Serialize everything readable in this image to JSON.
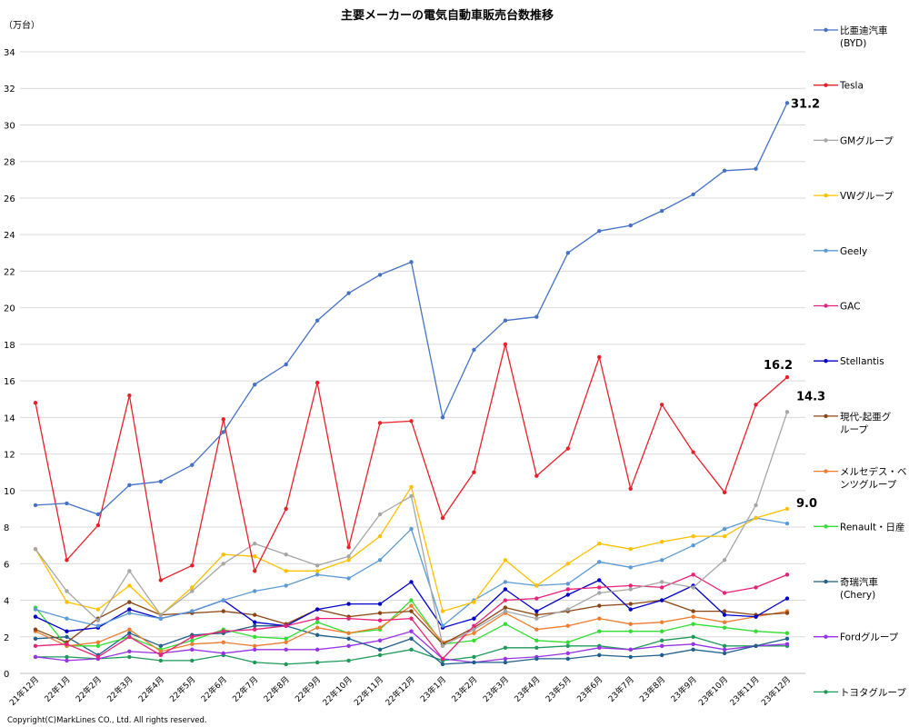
{
  "chart_data": {
    "type": "line",
    "title": "主要メーカーの電気自動車販売台数推移",
    "unit_label": "（万台）",
    "copyright": "Copyright(C)MarkLines CO., Ltd. All rights reserved.",
    "ylim": [
      0,
      34
    ],
    "yticks": [
      0,
      2,
      4,
      6,
      8,
      10,
      12,
      14,
      16,
      18,
      20,
      22,
      24,
      26,
      28,
      30,
      32,
      34
    ],
    "grid": true,
    "legend_position": "right",
    "categories": [
      "21年12月",
      "22年1月",
      "22年2月",
      "22年3月",
      "22年4月",
      "22年5月",
      "22年6月",
      "22年7月",
      "22年8月",
      "22年9月",
      "22年10月",
      "22年11月",
      "22年12月",
      "23年1月",
      "23年2月",
      "23年3月",
      "23年4月",
      "23年5月",
      "23年6月",
      "23年7月",
      "23年8月",
      "23年9月",
      "23年10月",
      "23年11月",
      "23年12月"
    ],
    "series": [
      {
        "name": "比亜迪汽車 (BYD)",
        "legend_lines": [
          "比亜迪汽車",
          "(BYD)"
        ],
        "color": "#4472c4",
        "values": [
          9.2,
          9.3,
          8.7,
          10.3,
          10.5,
          11.4,
          13.2,
          15.8,
          16.9,
          19.3,
          20.8,
          21.8,
          22.5,
          14.0,
          17.7,
          19.3,
          19.5,
          23.0,
          24.2,
          24.5,
          25.3,
          26.2,
          27.5,
          27.6,
          31.2
        ]
      },
      {
        "name": "Tesla",
        "legend_lines": [
          "Tesla"
        ],
        "color": "#e8202a",
        "values": [
          14.8,
          6.2,
          8.1,
          15.2,
          5.1,
          5.9,
          13.9,
          5.6,
          9.0,
          15.9,
          6.9,
          13.7,
          13.8,
          8.5,
          11.0,
          18.0,
          10.8,
          12.3,
          17.3,
          10.1,
          14.7,
          12.1,
          9.9,
          14.7,
          16.2
        ]
      },
      {
        "name": "GMグループ",
        "legend_lines": [
          "GMグループ"
        ],
        "color": "#a6a6a6",
        "values": [
          6.8,
          4.5,
          2.9,
          5.6,
          3.2,
          4.5,
          6.0,
          7.1,
          6.5,
          5.9,
          6.4,
          8.7,
          9.7,
          1.5,
          2.4,
          3.4,
          3.0,
          3.5,
          4.4,
          4.6,
          5.0,
          4.7,
          6.2,
          9.2,
          14.3
        ]
      },
      {
        "name": "VWグループ",
        "legend_lines": [
          "VWグループ"
        ],
        "color": "#ffc000",
        "values": [
          6.8,
          3.9,
          3.5,
          4.8,
          3.2,
          4.7,
          6.5,
          6.4,
          5.6,
          5.6,
          6.2,
          7.5,
          10.2,
          3.4,
          3.9,
          6.2,
          4.8,
          6.0,
          7.1,
          6.8,
          7.2,
          7.5,
          7.5,
          8.5,
          9.0
        ]
      },
      {
        "name": "Geely",
        "legend_lines": [
          "Geely"
        ],
        "color": "#5b9bd5",
        "values": [
          3.5,
          3.0,
          2.6,
          3.3,
          3.0,
          3.4,
          4.0,
          4.5,
          4.8,
          5.4,
          5.2,
          6.2,
          7.9,
          2.6,
          4.0,
          5.0,
          4.8,
          4.9,
          6.1,
          5.8,
          6.2,
          7.0,
          7.9,
          8.5,
          8.2
        ]
      },
      {
        "name": "GAC",
        "legend_lines": [
          "GAC"
        ],
        "color": "#e8217a",
        "values": [
          1.5,
          1.6,
          0.9,
          2.0,
          1.0,
          2.0,
          2.3,
          2.4,
          2.6,
          3.0,
          3.0,
          2.9,
          3.0,
          0.8,
          2.6,
          4.0,
          4.1,
          4.6,
          4.7,
          4.8,
          4.7,
          5.4,
          4.4,
          4.7,
          5.4
        ]
      },
      {
        "name": "Stellantis",
        "legend_lines": [
          "Stellantis"
        ],
        "color": "#0000c8",
        "values": [
          3.1,
          2.3,
          2.5,
          3.5,
          3.0,
          3.4,
          4.0,
          2.8,
          2.6,
          3.5,
          3.8,
          3.8,
          5.0,
          2.5,
          3.0,
          4.6,
          3.4,
          4.3,
          5.1,
          3.5,
          4.0,
          4.8,
          3.2,
          3.1,
          4.1
        ]
      },
      {
        "name": "現代-起亜グループ",
        "legend_lines": [
          "現代-起亜グ",
          "ループ"
        ],
        "color": "#8b4513",
        "values": [
          2.4,
          1.7,
          3.0,
          3.9,
          3.2,
          3.3,
          3.4,
          3.2,
          2.7,
          3.5,
          3.1,
          3.3,
          3.4,
          1.6,
          2.5,
          3.6,
          3.2,
          3.4,
          3.7,
          3.8,
          4.0,
          3.4,
          3.4,
          3.2,
          3.3
        ]
      },
      {
        "name": "メルセデス・ベンツグループ",
        "legend_lines": [
          "メルセデス・ベ",
          "ンツグループ"
        ],
        "color": "#ed7d31",
        "values": [
          2.3,
          1.5,
          1.7,
          2.4,
          1.2,
          1.6,
          1.7,
          1.5,
          1.7,
          2.5,
          2.2,
          2.5,
          3.7,
          1.7,
          2.2,
          3.3,
          2.4,
          2.6,
          3.0,
          2.7,
          2.8,
          3.1,
          2.8,
          3.1,
          3.4
        ]
      },
      {
        "name": "Renault・日産",
        "legend_lines": [
          "Renault・日産"
        ],
        "color": "#33dd33",
        "values": [
          3.6,
          1.5,
          1.5,
          2.0,
          1.3,
          1.8,
          2.4,
          2.0,
          1.9,
          2.8,
          2.2,
          2.4,
          4.0,
          1.6,
          1.8,
          2.7,
          1.8,
          1.7,
          2.3,
          2.3,
          2.3,
          2.7,
          2.5,
          2.3,
          2.2
        ]
      },
      {
        "name": "奇瑞汽車 (Chery)",
        "legend_lines": [
          "奇瑞汽車",
          "(Chery)"
        ],
        "color": "#1f5f8b",
        "values": [
          1.9,
          2.0,
          1.0,
          2.2,
          1.5,
          2.1,
          2.2,
          2.6,
          2.6,
          2.1,
          1.9,
          1.3,
          1.9,
          0.5,
          0.6,
          0.6,
          0.8,
          0.8,
          1.0,
          0.9,
          1.0,
          1.3,
          1.1,
          1.5,
          1.9
        ]
      },
      {
        "name": "Fordグループ",
        "legend_lines": [
          "Fordグループ"
        ],
        "color": "#9932e6",
        "values": [
          0.9,
          0.7,
          0.8,
          1.2,
          1.1,
          1.3,
          1.1,
          1.3,
          1.3,
          1.3,
          1.5,
          1.8,
          2.3,
          0.8,
          0.6,
          0.8,
          0.9,
          1.1,
          1.4,
          1.3,
          1.5,
          1.6,
          1.3,
          1.5,
          1.6
        ]
      },
      {
        "name": "トヨタグループ",
        "legend_lines": [
          "トヨタグループ"
        ],
        "color": "#1e9b5a",
        "values": [
          0.9,
          0.9,
          0.8,
          0.9,
          0.7,
          0.7,
          1.0,
          0.6,
          0.5,
          0.6,
          0.7,
          1.0,
          1.3,
          0.7,
          0.9,
          1.4,
          1.4,
          1.5,
          1.5,
          1.3,
          1.8,
          2.0,
          1.5,
          1.5,
          1.5
        ]
      }
    ],
    "annotations": [
      {
        "series": "比亜迪汽車 (BYD)",
        "category": "23年12月",
        "text": "31.2"
      },
      {
        "series": "Tesla",
        "category": "23年12月",
        "text": "16.2"
      },
      {
        "series": "GMグループ",
        "category": "23年12月",
        "text": "14.3"
      },
      {
        "series": "VWグループ",
        "category": "23年12月",
        "text": "9.0"
      }
    ]
  }
}
